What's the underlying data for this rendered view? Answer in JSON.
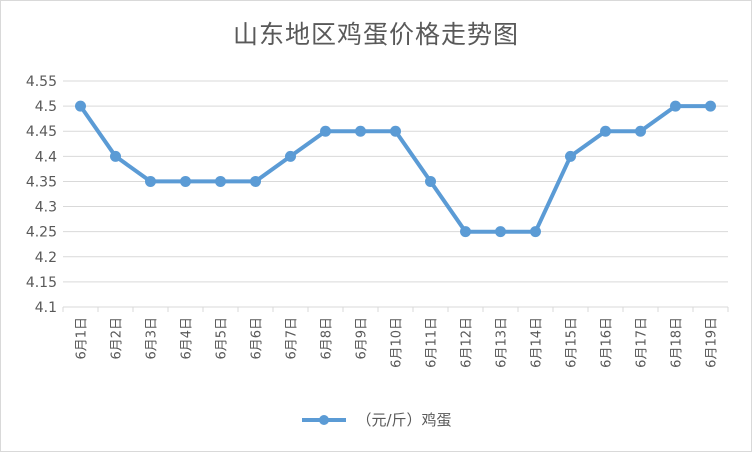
{
  "chart_data": {
    "type": "line",
    "title": "山东地区鸡蛋价格走势图",
    "categories": [
      "6月1日",
      "6月2日",
      "6月3日",
      "6月4日",
      "6月5日",
      "6月6日",
      "6月7日",
      "6月8日",
      "6月9日",
      "6月10日",
      "6月11日",
      "6月12日",
      "6月13日",
      "6月14日",
      "6月15日",
      "6月16日",
      "6月17日",
      "6月18日",
      "6月19日"
    ],
    "series": [
      {
        "name": "（元/斤）鸡蛋",
        "values": [
          4.5,
          4.4,
          4.35,
          4.35,
          4.35,
          4.35,
          4.4,
          4.45,
          4.45,
          4.45,
          4.35,
          4.25,
          4.25,
          4.25,
          4.4,
          4.45,
          4.45,
          4.5,
          4.5
        ]
      }
    ],
    "ylim": [
      4.1,
      4.55
    ],
    "yticks": [
      "4.1",
      "4.15",
      "4.2",
      "4.25",
      "4.3",
      "4.35",
      "4.4",
      "4.45",
      "4.5",
      "4.55"
    ],
    "grid": true,
    "legend_position": "bottom",
    "colors": {
      "line": "#5b9bd5",
      "grid": "#d9d9d9",
      "text": "#595959"
    }
  }
}
